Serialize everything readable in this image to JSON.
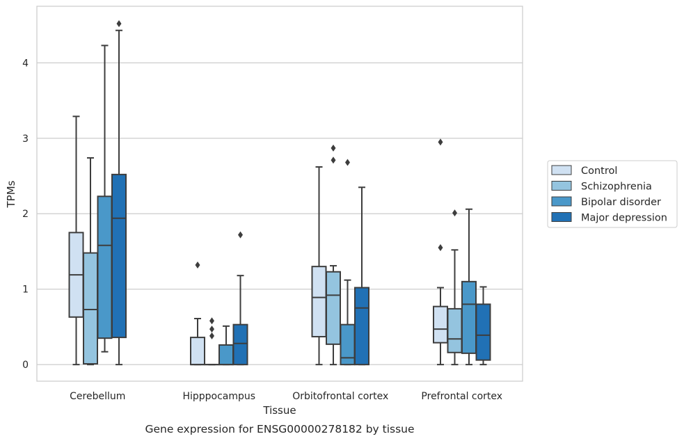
{
  "caption": "Gene expression for ENSG00000278182 by tissue",
  "chart_data": {
    "type": "box",
    "xlabel": "Tissue",
    "ylabel": "TPMs",
    "ylim": [
      -0.22,
      4.75
    ],
    "yticks": [
      0,
      1,
      2,
      3,
      4
    ],
    "categories": [
      "Cerebellum",
      "Hipppocampus",
      "Orbitofrontal cortex",
      "Prefrontal cortex"
    ],
    "grid": "horizontal",
    "legend_position": "right",
    "series": [
      {
        "name": "Control",
        "color": "#d0e1f2",
        "boxes": [
          {
            "whislo": 0.0,
            "q1": 0.63,
            "median": 1.19,
            "q3": 1.75,
            "whishi": 3.29,
            "fliers": []
          },
          {
            "whislo": 0.0,
            "q1": 0.0,
            "median": 0.0,
            "q3": 0.36,
            "whishi": 0.61,
            "fliers": [
              1.32
            ]
          },
          {
            "whislo": 0.0,
            "q1": 0.37,
            "median": 0.89,
            "q3": 1.3,
            "whishi": 2.62,
            "fliers": []
          },
          {
            "whislo": 0.0,
            "q1": 0.29,
            "median": 0.47,
            "q3": 0.77,
            "whishi": 1.02,
            "fliers": [
              1.55,
              2.95
            ]
          }
        ]
      },
      {
        "name": "Schizophrenia",
        "color": "#94c4df",
        "boxes": [
          {
            "whislo": 0.0,
            "q1": 0.01,
            "median": 0.73,
            "q3": 1.48,
            "whishi": 2.74,
            "fliers": []
          },
          {
            "whislo": 0.0,
            "q1": 0.0,
            "median": 0.0,
            "q3": 0.0,
            "whishi": 0.0,
            "fliers": [
              0.38,
              0.47,
              0.58
            ]
          },
          {
            "whislo": 0.0,
            "q1": 0.27,
            "median": 0.92,
            "q3": 1.23,
            "whishi": 1.31,
            "fliers": [
              2.71,
              2.87
            ]
          },
          {
            "whislo": 0.0,
            "q1": 0.16,
            "median": 0.34,
            "q3": 0.74,
            "whishi": 1.52,
            "fliers": [
              2.01
            ]
          }
        ]
      },
      {
        "name": "Bipolar disorder",
        "color": "#4a98c9",
        "boxes": [
          {
            "whislo": 0.17,
            "q1": 0.35,
            "median": 1.58,
            "q3": 2.23,
            "whishi": 4.23,
            "fliers": []
          },
          {
            "whislo": 0.0,
            "q1": 0.0,
            "median": 0.0,
            "q3": 0.26,
            "whishi": 0.51,
            "fliers": []
          },
          {
            "whislo": 0.0,
            "q1": 0.0,
            "median": 0.09,
            "q3": 0.53,
            "whishi": 1.12,
            "fliers": [
              2.68
            ]
          },
          {
            "whislo": 0.0,
            "q1": 0.15,
            "median": 0.8,
            "q3": 1.1,
            "whishi": 2.06,
            "fliers": []
          }
        ]
      },
      {
        "name": "Major depression",
        "color": "#2171b5",
        "boxes": [
          {
            "whislo": 0.0,
            "q1": 0.36,
            "median": 1.94,
            "q3": 2.52,
            "whishi": 4.43,
            "fliers": [
              4.52
            ]
          },
          {
            "whislo": 0.0,
            "q1": 0.0,
            "median": 0.28,
            "q3": 0.53,
            "whishi": 1.18,
            "fliers": [
              1.72
            ]
          },
          {
            "whislo": 0.0,
            "q1": 0.0,
            "median": 0.75,
            "q3": 1.02,
            "whishi": 2.35,
            "fliers": []
          },
          {
            "whislo": 0.0,
            "q1": 0.06,
            "median": 0.39,
            "q3": 0.8,
            "whishi": 1.03,
            "fliers": []
          }
        ]
      }
    ]
  }
}
